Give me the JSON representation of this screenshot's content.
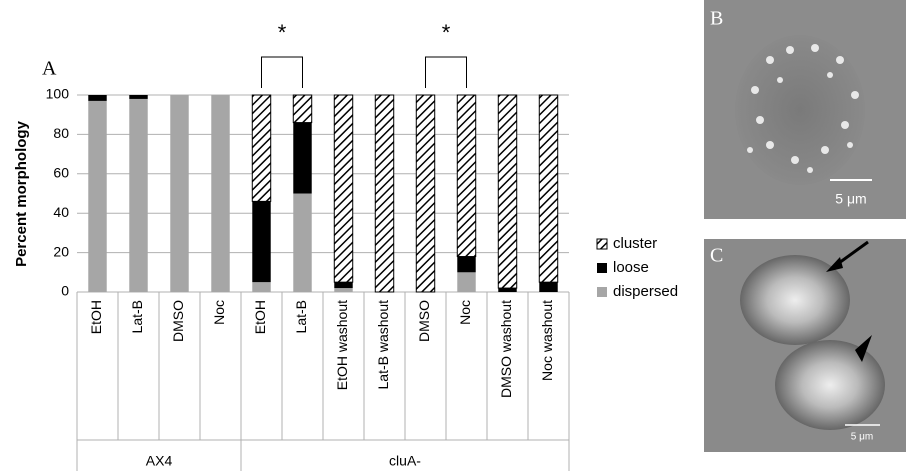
{
  "chart_data": {
    "type": "stacked_bar",
    "panel_label": "A",
    "y_label": "Percent morphology",
    "categories": [
      "EtOH",
      "Lat-B",
      "DMSO",
      "Noc",
      "EtOH",
      "Lat-B",
      "EtOH washout",
      "Lat-B washout",
      "DMSO",
      "Noc",
      "DMSO washout",
      "Noc washout"
    ],
    "groups": [
      {
        "label": "AX4",
        "span": 4
      },
      {
        "label": "cluA-",
        "span": 8
      }
    ],
    "series": [
      {
        "name": "dispersed",
        "color": "#a6a6a6",
        "values": [
          97,
          98,
          100,
          100,
          5,
          50,
          2,
          0,
          0,
          10,
          0,
          0
        ]
      },
      {
        "name": "loose",
        "color": "#000000",
        "values": [
          3,
          2,
          0,
          0,
          41,
          36,
          3,
          0,
          0,
          8,
          2,
          5
        ]
      },
      {
        "name": "cluster",
        "color": "#000000",
        "pattern": "hatch",
        "values": [
          0,
          0,
          0,
          0,
          54,
          14,
          95,
          100,
          100,
          82,
          98,
          95
        ]
      }
    ],
    "annotations": [
      {
        "text": "*"
      },
      {
        "text": "*"
      }
    ],
    "ylim": [
      0,
      100
    ],
    "yticks": [
      0,
      20,
      40,
      60,
      80,
      100
    ],
    "grid": true,
    "legend": "right"
  },
  "panels": {
    "b": {
      "label": "B",
      "scale": "5 μm"
    },
    "c": {
      "label": "C",
      "scale": "5 μm"
    }
  }
}
